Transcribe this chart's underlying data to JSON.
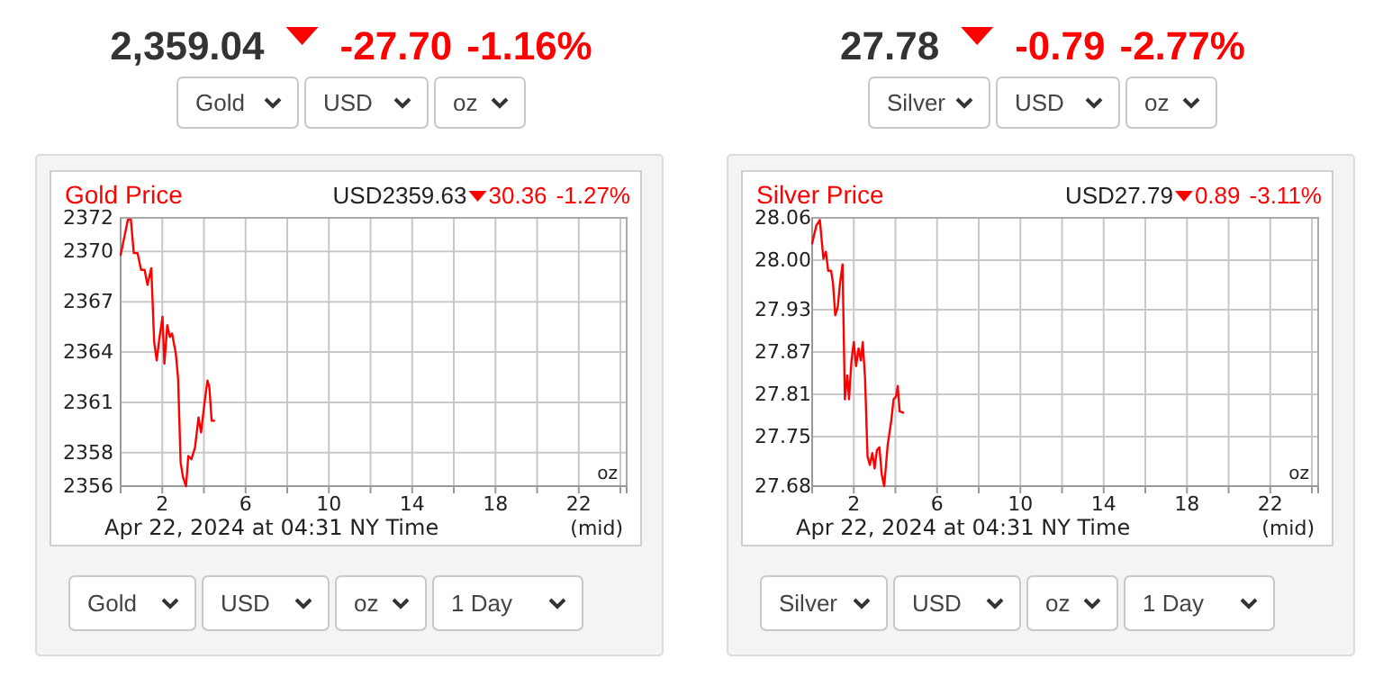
{
  "chart_data": [
    {
      "type": "line",
      "title": "Gold Price",
      "annotations": [
        "2,359.04",
        "-27.70",
        "-1.16%",
        "Gold",
        "USD",
        "oz",
        "USD2359.63",
        "30.36",
        "-1.27%",
        "oz",
        "Apr 22, 2024 at 04:31 NY Time",
        "(mid)",
        "Gold",
        "USD",
        "oz",
        "1 Day"
      ],
      "grid": true,
      "xlim": [
        0,
        24.3
      ],
      "xticks": [
        2,
        {
          "value": 4,
          "label": null
        },
        6,
        {
          "value": 8,
          "label": null
        },
        10,
        {
          "value": 12,
          "label": null
        },
        14,
        {
          "value": 16,
          "label": null
        },
        18,
        {
          "value": 20,
          "label": null
        },
        22,
        {
          "value": 24,
          "label": null
        }
      ],
      "ylim": [
        2356,
        2372
      ],
      "yticks": [
        2356,
        2358,
        2361,
        2364,
        2367,
        2370,
        2372
      ],
      "series": [
        {
          "color": "#ff0000",
          "x": [
            0,
            0.2,
            0.35,
            0.49,
            0.63,
            0.81,
            0.98,
            1.15,
            1.29,
            1.47,
            1.61,
            1.73,
            1.87,
            2.01,
            2.1,
            2.24,
            2.36,
            2.47,
            2.65,
            2.76,
            2.88,
            3.0,
            3.14,
            3.25,
            3.4,
            3.57,
            3.74,
            3.86,
            4.03,
            4.17,
            4.26,
            4.37,
            4.49
          ],
          "values": [
            2369.8,
            2371.0,
            2371.9,
            2371.9,
            2369.9,
            2369.9,
            2368.9,
            2368.9,
            2368.0,
            2369.0,
            2364.6,
            2363.5,
            2364.9,
            2366.1,
            2363.3,
            2365.6,
            2364.9,
            2365.1,
            2363.9,
            2362.4,
            2357.4,
            2356.5,
            2356.0,
            2357.8,
            2357.6,
            2358.3,
            2360.1,
            2359.2,
            2361.0,
            2362.3,
            2361.9,
            2359.9,
            2359.9
          ]
        }
      ]
    },
    {
      "type": "line",
      "title": "Silver Price",
      "annotations": [
        "27.78",
        "-0.79",
        "-2.77%",
        "Silver",
        "USD",
        "oz",
        "USD27.79",
        "0.89",
        "-3.11%",
        "oz",
        "Apr 22, 2024 at 04:31 NY Time",
        "(mid)",
        "Silver",
        "USD",
        "oz",
        "1 Day"
      ],
      "grid": true,
      "xlim": [
        0,
        24.3
      ],
      "xticks": [
        2,
        {
          "value": 4,
          "label": null
        },
        6,
        {
          "value": 8,
          "label": null
        },
        10,
        {
          "value": 12,
          "label": null
        },
        14,
        {
          "value": 16,
          "label": null
        },
        18,
        {
          "value": 20,
          "label": null
        },
        22,
        {
          "value": 24,
          "label": null
        }
      ],
      "ylim": [
        27.68,
        28.06
      ],
      "yticks": [
        {
          "value": 27.68,
          "label": "27.68"
        },
        {
          "value": 27.75,
          "label": "27.75"
        },
        {
          "value": 27.81,
          "label": "27.81"
        },
        {
          "value": 27.87,
          "label": "27.87"
        },
        {
          "value": 27.93,
          "label": "27.93"
        },
        {
          "value": 28.0,
          "label": "28.00"
        },
        {
          "value": 28.06,
          "label": "28.06"
        }
      ],
      "series": [
        {
          "color": "#ff0000",
          "x": [
            0,
            0.2,
            0.37,
            0.54,
            0.66,
            0.77,
            0.91,
            1.0,
            1.11,
            1.23,
            1.34,
            1.46,
            1.57,
            1.69,
            1.77,
            1.89,
            2.0,
            2.11,
            2.23,
            2.34,
            2.43,
            2.54,
            2.66,
            2.77,
            2.89,
            3.0,
            3.11,
            3.23,
            3.34,
            3.46,
            3.63,
            3.8,
            3.91,
            4.03,
            4.11,
            4.2,
            4.37
          ],
          "values": [
            28.024,
            28.049,
            28.057,
            28.002,
            28.012,
            27.985,
            27.985,
            27.968,
            27.922,
            27.934,
            27.968,
            27.994,
            27.803,
            27.837,
            27.803,
            27.858,
            27.884,
            27.85,
            27.875,
            27.858,
            27.884,
            27.833,
            27.722,
            27.71,
            27.727,
            27.705,
            27.731,
            27.735,
            27.697,
            27.68,
            27.739,
            27.773,
            27.803,
            27.807,
            27.822,
            27.786,
            27.784
          ]
        }
      ]
    }
  ]
}
